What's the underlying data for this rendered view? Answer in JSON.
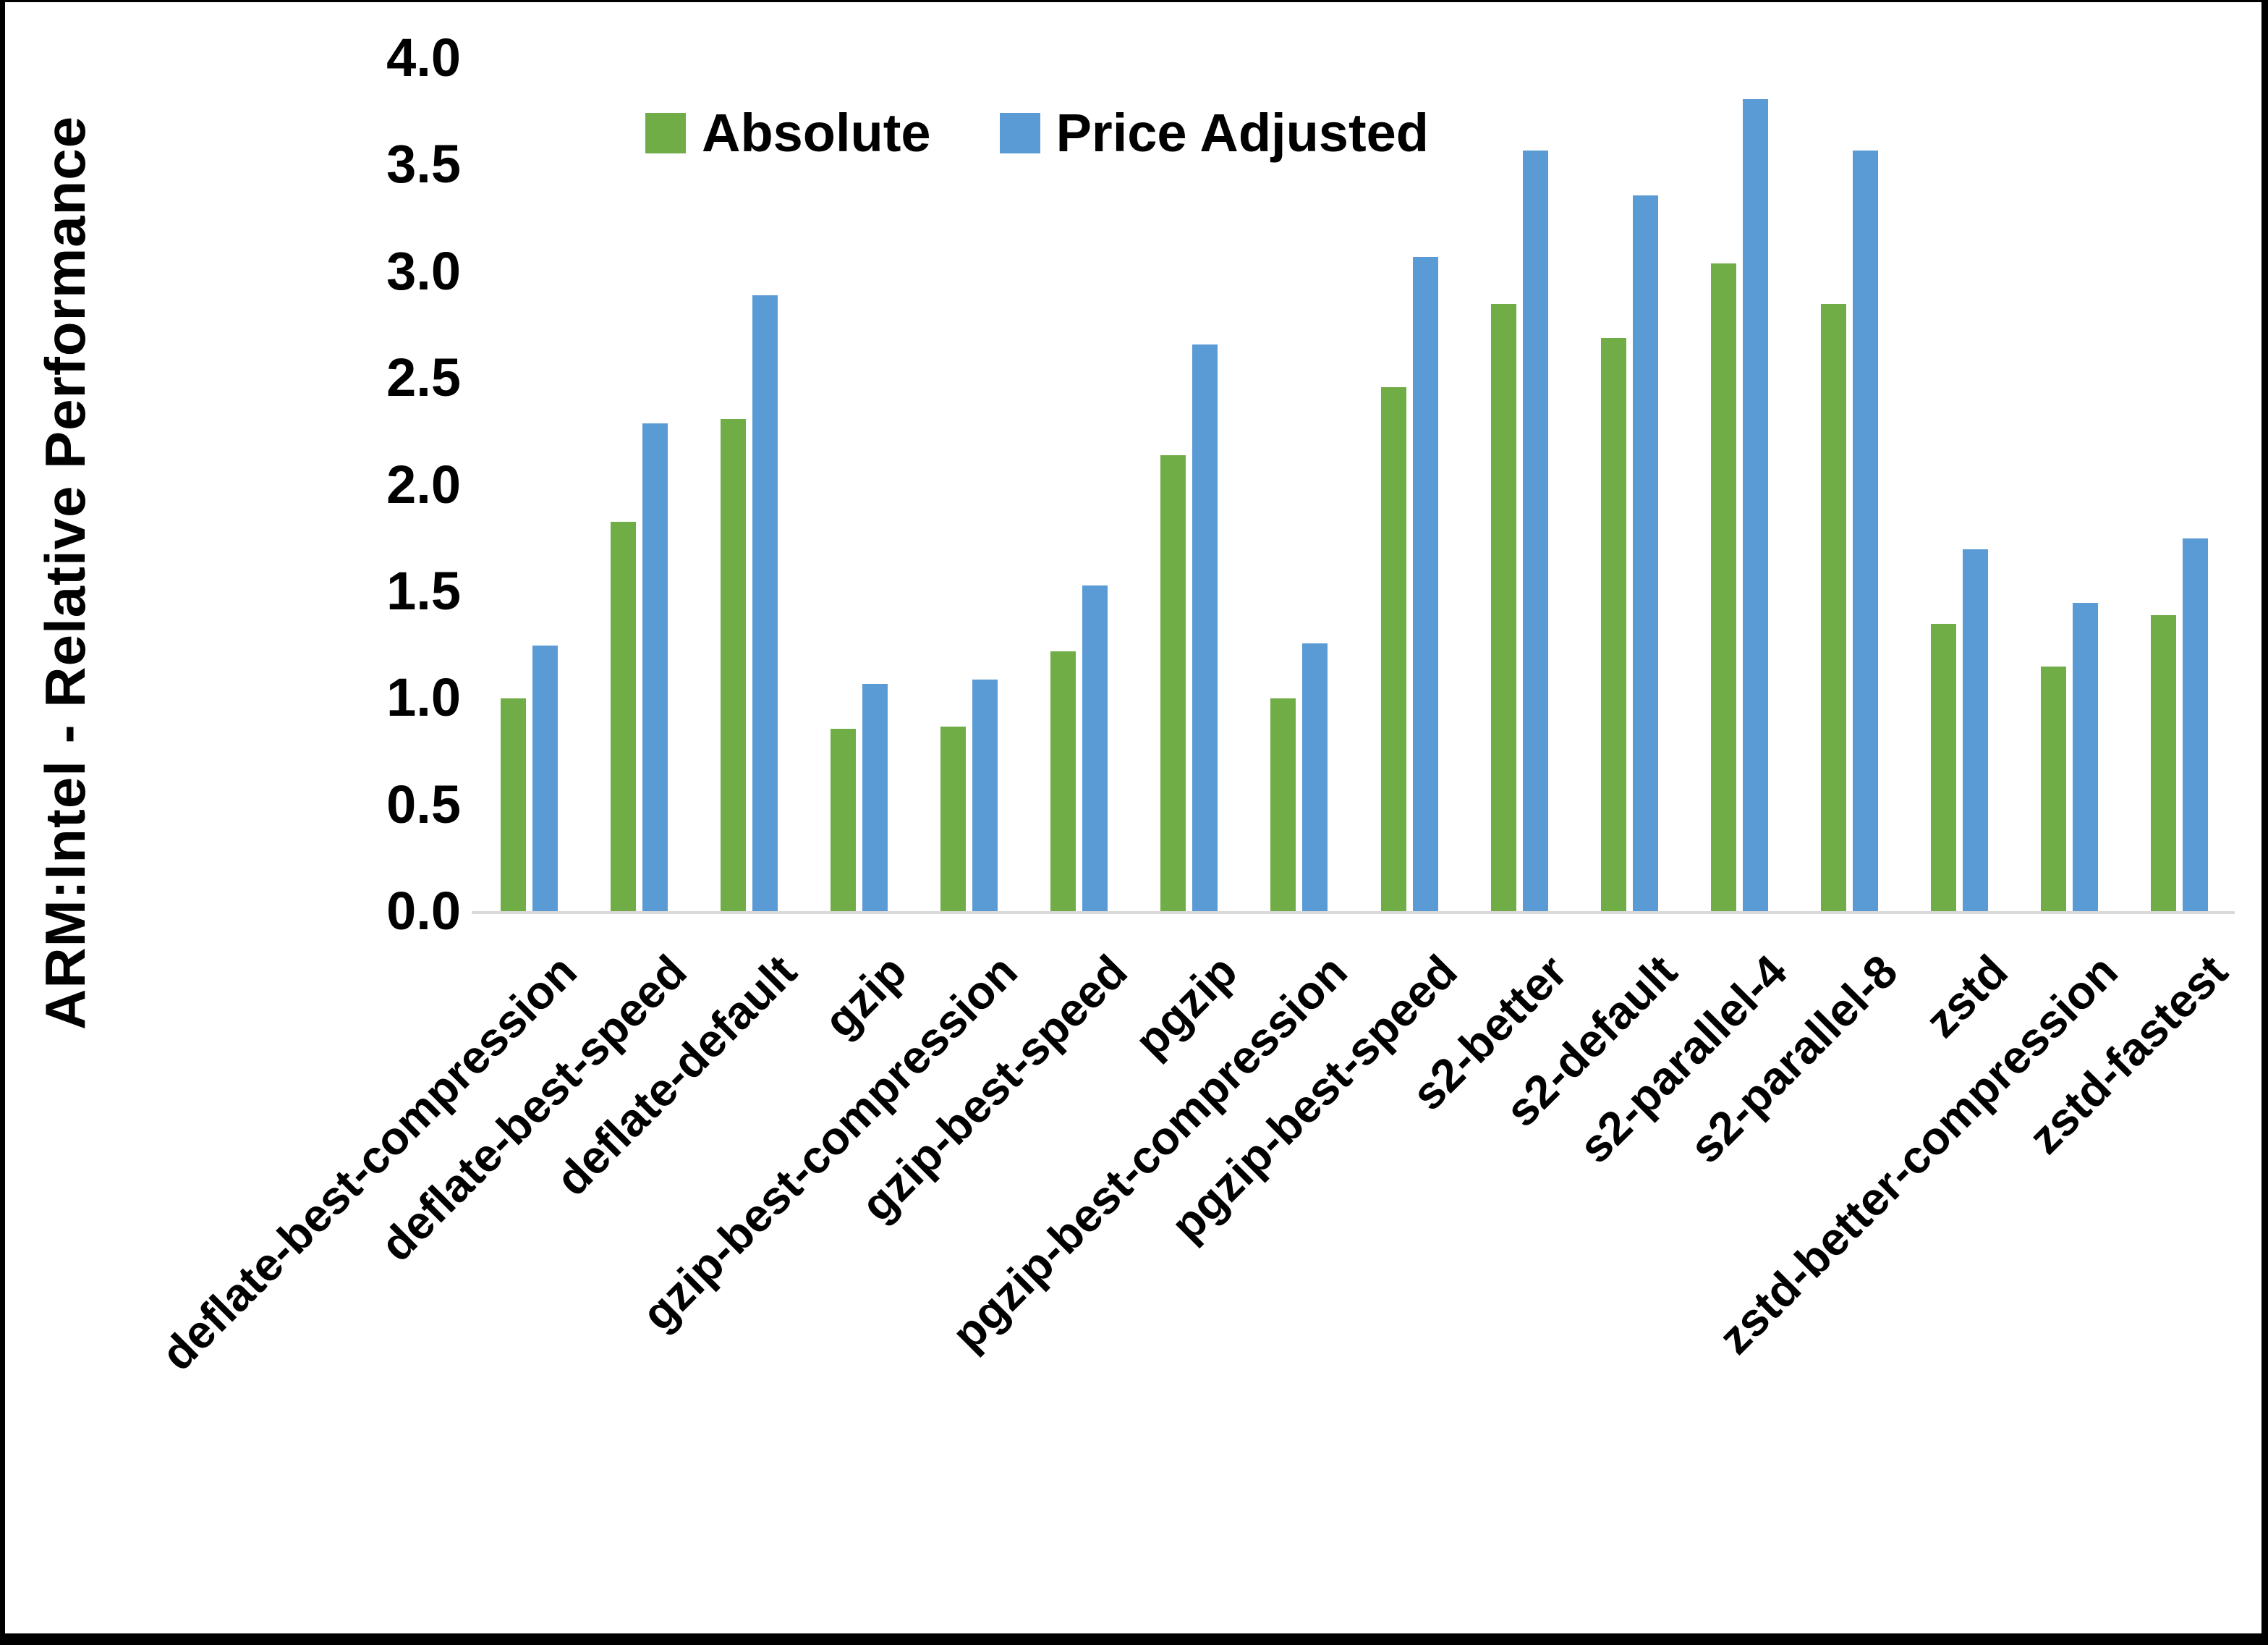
{
  "chart_data": {
    "type": "bar",
    "title": "",
    "y_axis_title": "ARM:Intel - Relative Performance",
    "categories": [
      "deflate-best-compression",
      "deflate-best-speed",
      "deflate-default",
      "gzip",
      "gzip-best-compression",
      "gzip-best-speed",
      "pgzip",
      "pgzip-best-compression",
      "pgzip-best-speed",
      "s2-better",
      "s2-default",
      "s2-parallel-4",
      "s2-parallel-8",
      "zstd",
      "zstd-better-compression",
      "zstd-fastest"
    ],
    "series": [
      {
        "name": "Absolute",
        "color": "#70AD47",
        "values": [
          1.0,
          1.83,
          2.31,
          0.86,
          0.87,
          1.22,
          2.14,
          1.0,
          2.46,
          2.85,
          2.69,
          3.04,
          2.85,
          1.35,
          1.15,
          1.39
        ]
      },
      {
        "name": "Price Adjusted",
        "color": "#5B9BD5",
        "values": [
          1.25,
          2.29,
          2.89,
          1.07,
          1.09,
          1.53,
          2.66,
          1.26,
          3.07,
          3.57,
          3.36,
          3.81,
          3.57,
          1.7,
          1.45,
          1.75
        ]
      }
    ],
    "ylim": [
      0.0,
      4.0
    ],
    "y_tick_step": 0.5,
    "y_tick_labels": [
      "0.0",
      "0.5",
      "1.0",
      "1.5",
      "2.0",
      "2.5",
      "3.0",
      "3.5",
      "4.0"
    ],
    "grid": "off",
    "legend_position": "top-center"
  },
  "colors": {
    "axis_line": "#D9D9D9",
    "text": "#000000",
    "background": "#FFFFFF",
    "frame": "#000000"
  }
}
